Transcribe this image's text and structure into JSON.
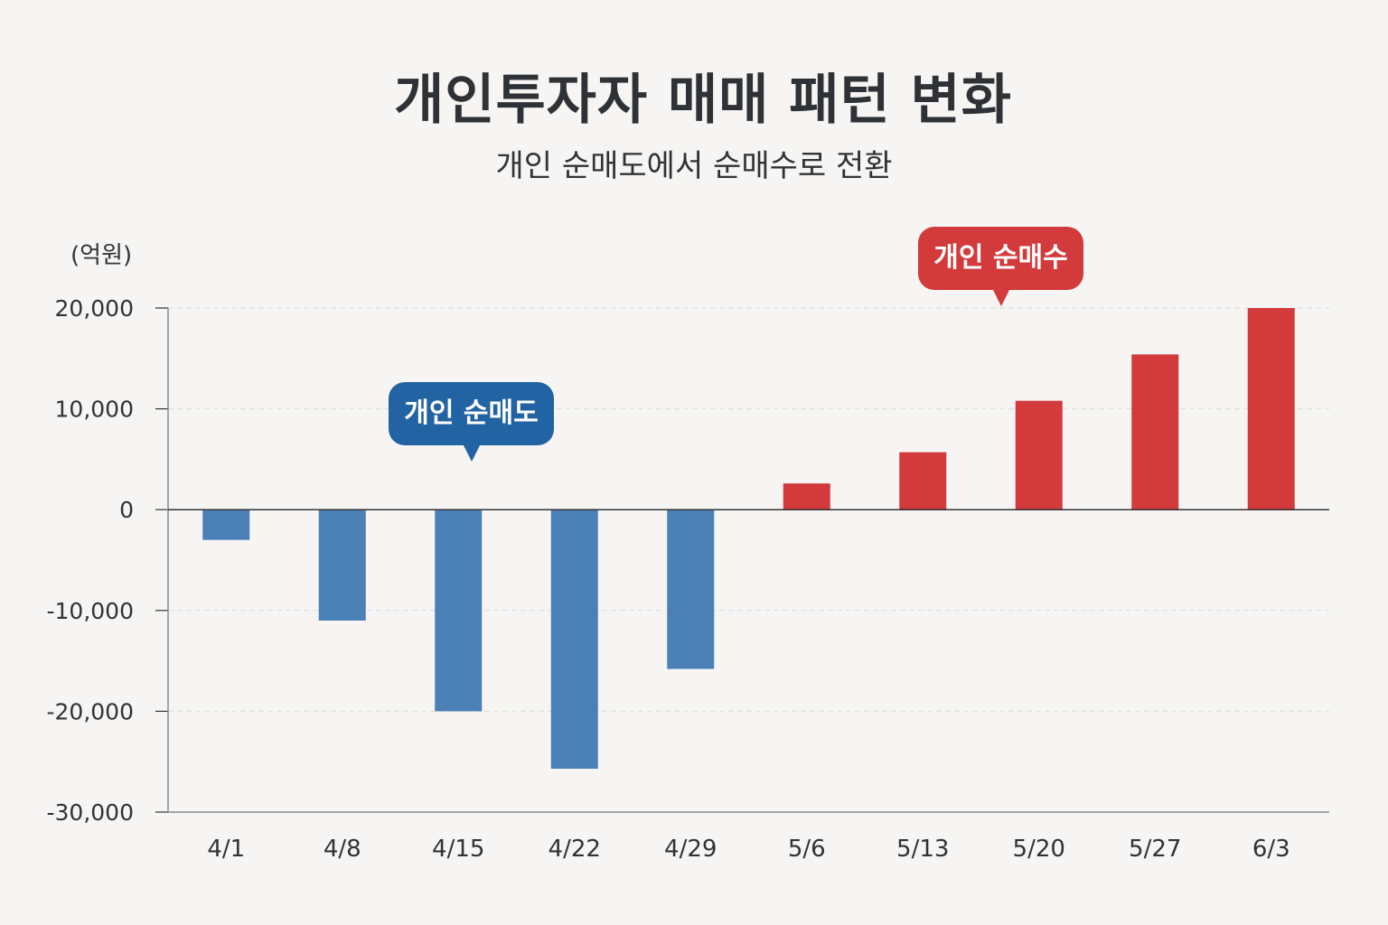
{
  "title": "개인투자자 매매 패턴 변화",
  "subtitle": "개인 순매도에서 순매수로 전환",
  "unit_label": "(억원)",
  "callouts": {
    "sell": "개인 순매도",
    "buy": "개인 순매수"
  },
  "colors": {
    "negative": "#4a80b6",
    "positive": "#d33a3c",
    "callout_sell": "#2263a3",
    "callout_buy": "#d33a3c",
    "axis": "#333333",
    "grid": "#dcdcdc"
  },
  "chart_data": {
    "type": "bar",
    "title": "개인투자자 매매 패턴 변화",
    "subtitle": "개인 순매도에서 순매수로 전환",
    "ylabel": "(억원)",
    "xlabel": "",
    "categories": [
      "4/1",
      "4/8",
      "4/15",
      "4/22",
      "4/29",
      "5/6",
      "5/13",
      "5/20",
      "5/27",
      "6/3"
    ],
    "values": [
      -3000,
      -11000,
      -20000,
      -25700,
      -15800,
      2600,
      5700,
      10800,
      15400,
      20000
    ],
    "ylim": [
      -30000,
      20000
    ],
    "yticks": [
      20000,
      10000,
      0,
      -10000,
      -20000,
      -30000
    ],
    "ytick_labels": [
      "20,000",
      "10,000",
      "0",
      "-10,000",
      "-20,000",
      "-30,000"
    ],
    "grid": true,
    "annotations": [
      "개인 순매도",
      "개인 순매수"
    ]
  }
}
